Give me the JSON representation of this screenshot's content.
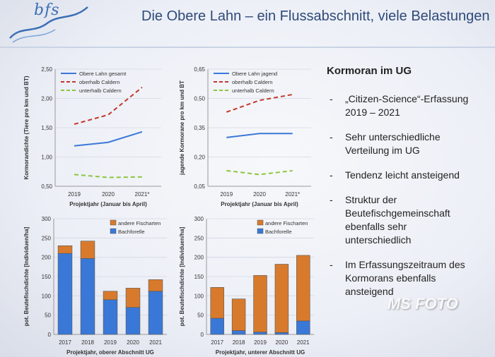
{
  "header": {
    "logo_text": "bfs",
    "title": "Die Obere Lahn – ein Flussabschnitt, viele Belastungen"
  },
  "panel": {
    "title": "Kormoran im UG",
    "bullets": [
      [
        "„Citizen-Science“-Erfassung",
        "2019 – 2021"
      ],
      [
        "Sehr unterschiedliche",
        "Verteilung im UG"
      ],
      [
        "Tendenz leicht ansteigend"
      ],
      [
        "Struktur der",
        "Beutefischgemeinschaft",
        "ebenfalls sehr",
        "unterschiedlich"
      ],
      [
        "Im Erfassungszeitraum des",
        "Kormorans ebenfalls",
        "ansteigend"
      ]
    ]
  },
  "watermark": "MS FOTO",
  "colors": {
    "blue": "#3a78d8",
    "red": "#c0392b",
    "green": "#8cc63f",
    "orange": "#d87a2c",
    "bar_blue": "#3a78d8"
  },
  "chart_data": [
    {
      "type": "line",
      "x": [
        "2019",
        "2020",
        "2021*"
      ],
      "series": [
        {
          "name": "Obere Lahn gesamt",
          "values": [
            1.19,
            1.25,
            1.43
          ],
          "color": "#3a78d8",
          "style": "solid"
        },
        {
          "name": "oberhalb Caldern",
          "values": [
            1.56,
            1.72,
            2.19
          ],
          "color": "#c0392b",
          "style": "dashed"
        },
        {
          "name": "unterhalb Caldern",
          "values": [
            0.7,
            0.65,
            0.66
          ],
          "color": "#8cc63f",
          "style": "dashed"
        }
      ],
      "ylabel": "Kormorandichte (Tiere pro km und BT)",
      "xlabel": "Projektjahr (Januar bis April)",
      "ylim": [
        0.5,
        2.5
      ],
      "yticks": [
        "0,50",
        "1,00",
        "1,50",
        "2,00",
        "2,50"
      ],
      "ytick_values": [
        0.5,
        1.0,
        1.5,
        2.0,
        2.5
      ],
      "legend": "top-left"
    },
    {
      "type": "line",
      "x": [
        "2019",
        "2020",
        "2021*"
      ],
      "series": [
        {
          "name": "Obere Lahn jagend",
          "values": [
            0.3,
            0.32,
            0.32
          ],
          "color": "#3a78d8",
          "style": "solid"
        },
        {
          "name": "oberhalb Caldern",
          "values": [
            0.43,
            0.49,
            0.52
          ],
          "color": "#c0392b",
          "style": "dashed"
        },
        {
          "name": "unterhalb Caldern",
          "values": [
            0.13,
            0.11,
            0.13
          ],
          "color": "#8cc63f",
          "style": "dashed"
        }
      ],
      "ylabel": "jagende Kormorane pro km und BT",
      "xlabel": "Projektjahr (Januar bis April)",
      "ylim": [
        0.05,
        0.65
      ],
      "yticks": [
        "0,05",
        "0,20",
        "0,35",
        "0,50",
        "0,65"
      ],
      "ytick_values": [
        0.05,
        0.2,
        0.35,
        0.5,
        0.65
      ],
      "legend": "top-left"
    },
    {
      "type": "bar",
      "stacked": true,
      "categories": [
        "2017",
        "2018",
        "2019",
        "2020",
        "2021"
      ],
      "series": [
        {
          "name": "Bachforelle",
          "values": [
            210,
            197,
            90,
            70,
            112
          ],
          "color": "#3a78d8"
        },
        {
          "name": "andere Fischarten",
          "values": [
            20,
            45,
            22,
            50,
            30
          ],
          "color": "#d87a2c"
        }
      ],
      "legend_order": [
        "andere Fischarten",
        "Bachforelle"
      ],
      "ylabel": "pot. Beutefischdichte [Individuen/ha]",
      "xlabel": "Projektjahr, oberer Abschnitt UG",
      "ylim": [
        0,
        300
      ],
      "yticks": [
        "0",
        "50",
        "100",
        "150",
        "200",
        "250",
        "300"
      ],
      "ytick_values": [
        0,
        50,
        100,
        150,
        200,
        250,
        300
      ],
      "legend": "top-right"
    },
    {
      "type": "bar",
      "stacked": true,
      "categories": [
        "2017",
        "2018",
        "2019",
        "2020",
        "2021"
      ],
      "series": [
        {
          "name": "Bachforelle",
          "values": [
            42,
            10,
            6,
            5,
            35
          ],
          "color": "#3a78d8"
        },
        {
          "name": "andere Fischarten",
          "values": [
            80,
            82,
            147,
            177,
            170
          ],
          "color": "#d87a2c"
        }
      ],
      "legend_order": [
        "andere Fischarten",
        "Bachforelle"
      ],
      "ylabel": "pot. Beutefischdichte [Individuen/ha]",
      "xlabel": "Projektjahr, unterer Abschnitt UG",
      "ylim": [
        0,
        300
      ],
      "yticks": [
        "0",
        "50",
        "100",
        "150",
        "200",
        "250",
        "300"
      ],
      "ytick_values": [
        0,
        50,
        100,
        150,
        200,
        250,
        300
      ],
      "legend": "top-right"
    }
  ]
}
